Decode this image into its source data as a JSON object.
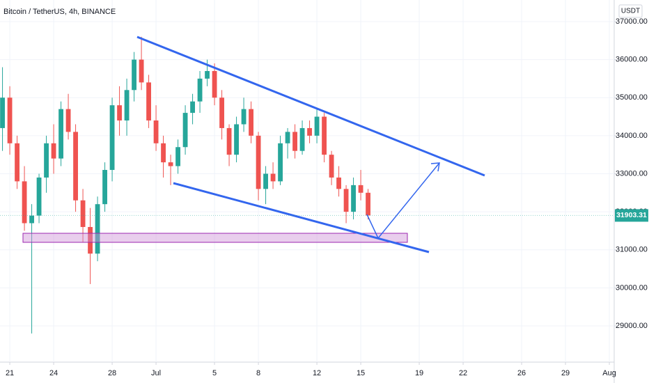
{
  "chart_data": {
    "type": "candlestick",
    "title": "Bitcoin / TetherUS, 4h, BINANCE",
    "currency": "USDT",
    "last_price": 31903.31,
    "up_color": "#26a69a",
    "down_color": "#ef5350",
    "xlim": [
      20.33,
      62.33
    ],
    "xticks": [
      21,
      {
        "value": 24,
        "label": "24"
      },
      {
        "value": 28,
        "label": "28"
      },
      {
        "value": 31,
        "label": "Jul"
      },
      {
        "value": 35,
        "label": "5"
      },
      {
        "value": 38,
        "label": "8"
      },
      {
        "value": 42,
        "label": "12"
      },
      {
        "value": 45,
        "label": "15"
      },
      {
        "value": 49,
        "label": "19"
      },
      {
        "value": 52,
        "label": "22"
      },
      {
        "value": 56,
        "label": "26"
      },
      {
        "value": 59,
        "label": "29"
      },
      {
        "value": 62,
        "label": "Aug"
      }
    ],
    "ylim": [
      28048,
      37567
    ],
    "yticks": [
      {
        "value": 29000,
        "label": "29000.00"
      },
      {
        "value": 30000,
        "label": "30000.00"
      },
      {
        "value": 31000,
        "label": "31000.00"
      },
      {
        "value": 32000,
        "label": "32000.00"
      },
      {
        "value": 33000,
        "label": "33000.00"
      },
      {
        "value": 34000,
        "label": "34000.00"
      },
      {
        "value": 35000,
        "label": "35000.00"
      },
      {
        "value": 36000,
        "label": "36000.00"
      },
      {
        "value": 37000,
        "label": "37000.00"
      }
    ],
    "x": [
      20.5,
      21,
      21.5,
      22,
      22.5,
      23,
      23.5,
      24,
      24.5,
      25,
      25.5,
      26,
      26.5,
      27,
      27.5,
      28,
      28.5,
      29,
      29.5,
      30,
      30.5,
      31,
      31.5,
      32,
      32.5,
      33,
      33.5,
      34,
      34.5,
      35,
      35.5,
      36,
      36.5,
      37,
      37.5,
      38,
      38.5,
      39,
      39.5,
      40,
      40.5,
      41,
      41.5,
      42,
      42.5,
      43,
      43.5,
      44,
      44.5,
      45,
      45.5
    ],
    "open": [
      34200,
      35000,
      33800,
      32800,
      31700,
      31900,
      32900,
      33800,
      33400,
      34700,
      34100,
      32300,
      31600,
      30900,
      32200,
      33100,
      34800,
      34400,
      35200,
      36000,
      35400,
      34400,
      33800,
      33300,
      33200,
      33700,
      34600,
      34900,
      35500,
      35700,
      35000,
      34200,
      33500,
      34300,
      34700,
      34000,
      32600,
      33000,
      32800,
      33800,
      34100,
      33600,
      34200,
      34000,
      34500,
      33500,
      32900,
      32600,
      32000,
      32700,
      32500
    ],
    "high": [
      35800,
      35300,
      34000,
      33200,
      32200,
      33000,
      34000,
      34300,
      34900,
      35100,
      34300,
      32600,
      32100,
      32400,
      33300,
      35000,
      35300,
      35500,
      36200,
      36600,
      35600,
      34800,
      34000,
      33500,
      33900,
      34800,
      35100,
      35700,
      36000,
      35900,
      35200,
      34300,
      34500,
      35000,
      34900,
      34100,
      33200,
      33300,
      34000,
      34200,
      34300,
      34400,
      34400,
      34700,
      34600,
      33600,
      33200,
      32700,
      32900,
      33100,
      32600
    ],
    "low": [
      33600,
      33500,
      32600,
      31500,
      28800,
      31700,
      32500,
      33000,
      33200,
      33900,
      32000,
      31200,
      30100,
      30700,
      32000,
      32800,
      34000,
      34000,
      34900,
      35200,
      34200,
      33600,
      32900,
      32700,
      33000,
      33500,
      34300,
      34600,
      35300,
      34800,
      33900,
      33200,
      33300,
      34100,
      33800,
      32300,
      32200,
      32600,
      32700,
      33400,
      33400,
      33500,
      33800,
      33800,
      33300,
      32700,
      32400,
      31700,
      31800,
      32300,
      31800
    ],
    "close": [
      35000,
      33800,
      32800,
      31700,
      31900,
      32900,
      33800,
      33400,
      34700,
      34100,
      32300,
      31600,
      30900,
      32200,
      33100,
      34800,
      34400,
      35200,
      36000,
      35400,
      34400,
      33800,
      33300,
      33200,
      33700,
      34600,
      34900,
      35500,
      35700,
      35000,
      34200,
      33500,
      34300,
      34700,
      34000,
      32600,
      33000,
      32800,
      33800,
      34100,
      33600,
      34200,
      34000,
      34500,
      33500,
      32900,
      32600,
      32000,
      32700,
      32500,
      31903.31
    ]
  }
}
